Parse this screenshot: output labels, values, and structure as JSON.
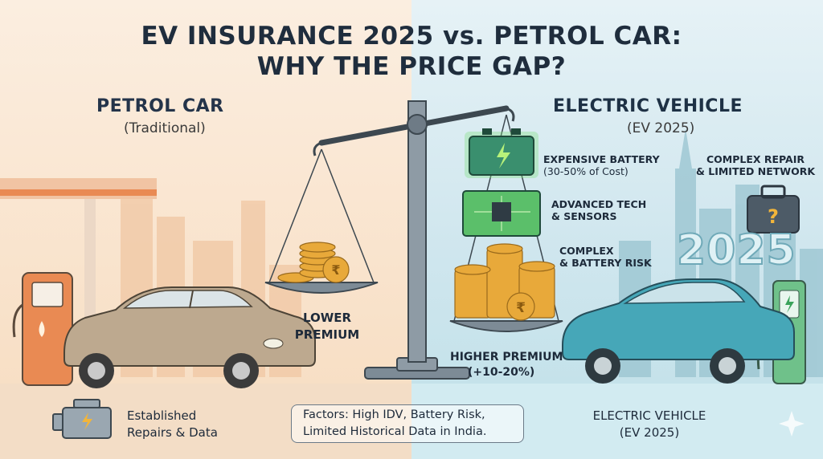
{
  "title": {
    "line1": "EV INSURANCE 2025 vs. PETROL CAR:",
    "line2": "WHY THE PRICE GAP?"
  },
  "petrol": {
    "heading": "PETROL CAR",
    "subheading": "(Traditional)",
    "scale_label_line1": "LOWER",
    "scale_label_line2": "PREMIUM",
    "footer_line1": "Established",
    "footer_line2": "Repairs & Data"
  },
  "ev": {
    "heading": "ELECTRIC VEHICLE",
    "subheading": "(EV 2025)",
    "battery_line1": "EXPENSIVE BATTERY",
    "battery_line2": "(30-50% of Cost)",
    "tech_line1": "ADVANCED TECH",
    "tech_line2": "& SENSORS",
    "risk_line1": "COMPLEX",
    "risk_line2": "& BATTERY RISK",
    "repair_line1": "COMPLEX REPAIR",
    "repair_line2": "& LIMITED NETWORK",
    "year": "2025",
    "scale_label_line1": "HIGHER PREMIUM",
    "scale_label_line2": "(+10-20%)",
    "footer_line1": "ELECTRIC VEHICLE",
    "footer_line2": "(EV 2025)"
  },
  "factors": {
    "line1": "Factors: High IDV, Battery Risk,",
    "line2": "Limited Historical Data in India."
  },
  "icons": {
    "coin": "rupee-coin-icon",
    "battery": "battery-icon",
    "chip": "chip-icon",
    "engine": "engine-icon",
    "toolbox": "toolbox-icon",
    "sparkle": "sparkle-icon",
    "fuel_pump": "fuel-pump-icon",
    "charger": "ev-charger-icon"
  },
  "colors": {
    "petrol_bg": "#f9e3cc",
    "ev_bg": "#cfe6ee",
    "coin": "#e8a93a",
    "battery_glow": "#7be07a",
    "petrol_car": "#b9a58b",
    "ev_car": "#3f9fb3"
  }
}
